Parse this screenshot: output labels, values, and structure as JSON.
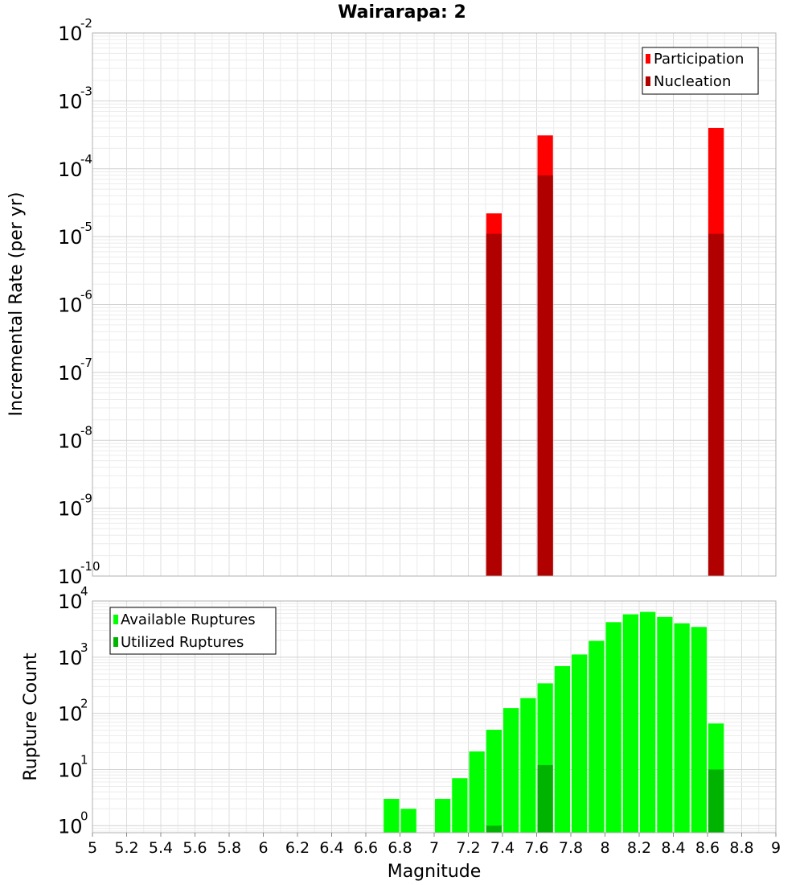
{
  "chart_data": [
    {
      "type": "bar",
      "title": "Wairarapa: 2",
      "xlabel": "",
      "ylabel": "Incremental Rate (per yr)",
      "y_scale": "log",
      "xlim": [
        5,
        9
      ],
      "ylim": [
        1e-10,
        0.01
      ],
      "y_ticks": [
        {
          "base": "10",
          "exp": "-10"
        },
        {
          "base": "10",
          "exp": "-9"
        },
        {
          "base": "10",
          "exp": "-8"
        },
        {
          "base": "10",
          "exp": "-7"
        },
        {
          "base": "10",
          "exp": "-6"
        },
        {
          "base": "10",
          "exp": "-5"
        },
        {
          "base": "10",
          "exp": "-4"
        },
        {
          "base": "10",
          "exp": "-3"
        },
        {
          "base": "10",
          "exp": "-2"
        }
      ],
      "legend_position": "top-right",
      "grid": true,
      "bin_width": 0.1,
      "series": [
        {
          "name": "Participation",
          "color": "#ff0000",
          "x": [
            7.35,
            7.65,
            8.65
          ],
          "values": [
            2.2e-05,
            0.00031,
            0.0004
          ]
        },
        {
          "name": "Nucleation",
          "color": "#b00000",
          "x": [
            7.35,
            7.65,
            8.65
          ],
          "values": [
            1.1e-05,
            8e-05,
            1.1e-05
          ]
        }
      ]
    },
    {
      "type": "bar",
      "title": "",
      "xlabel": "Magnitude",
      "ylabel": "Rupture Count",
      "y_scale": "log",
      "xlim": [
        5,
        9
      ],
      "ylim": [
        0.75,
        10000
      ],
      "x_ticks": [
        "5",
        "5.2",
        "5.4",
        "5.6",
        "5.8",
        "6",
        "6.2",
        "6.4",
        "6.6",
        "6.8",
        "7",
        "7.2",
        "7.4",
        "7.6",
        "7.8",
        "8",
        "8.2",
        "8.4",
        "8.6",
        "8.8",
        "9"
      ],
      "y_ticks": [
        {
          "base": "10",
          "exp": "0"
        },
        {
          "base": "10",
          "exp": "1"
        },
        {
          "base": "10",
          "exp": "2"
        },
        {
          "base": "10",
          "exp": "3"
        },
        {
          "base": "10",
          "exp": "4"
        }
      ],
      "legend_position": "top-left",
      "grid": true,
      "bin_width": 0.1,
      "series": [
        {
          "name": "Available Ruptures",
          "color": "#00ff00",
          "x": [
            6.75,
            6.85,
            7.05,
            7.15,
            7.25,
            7.35,
            7.45,
            7.55,
            7.65,
            7.75,
            7.85,
            7.95,
            8.05,
            8.15,
            8.25,
            8.35,
            8.45,
            8.55,
            8.65
          ],
          "values": [
            3,
            2,
            3,
            7,
            21,
            51,
            124,
            187,
            342,
            692,
            1117,
            1950,
            4200,
            5800,
            6400,
            5200,
            4000,
            3450,
            66
          ]
        },
        {
          "name": "Utilized Ruptures",
          "color": "#00b300",
          "x": [
            7.35,
            7.65,
            8.65
          ],
          "values": [
            1,
            12,
            10
          ]
        }
      ]
    }
  ]
}
